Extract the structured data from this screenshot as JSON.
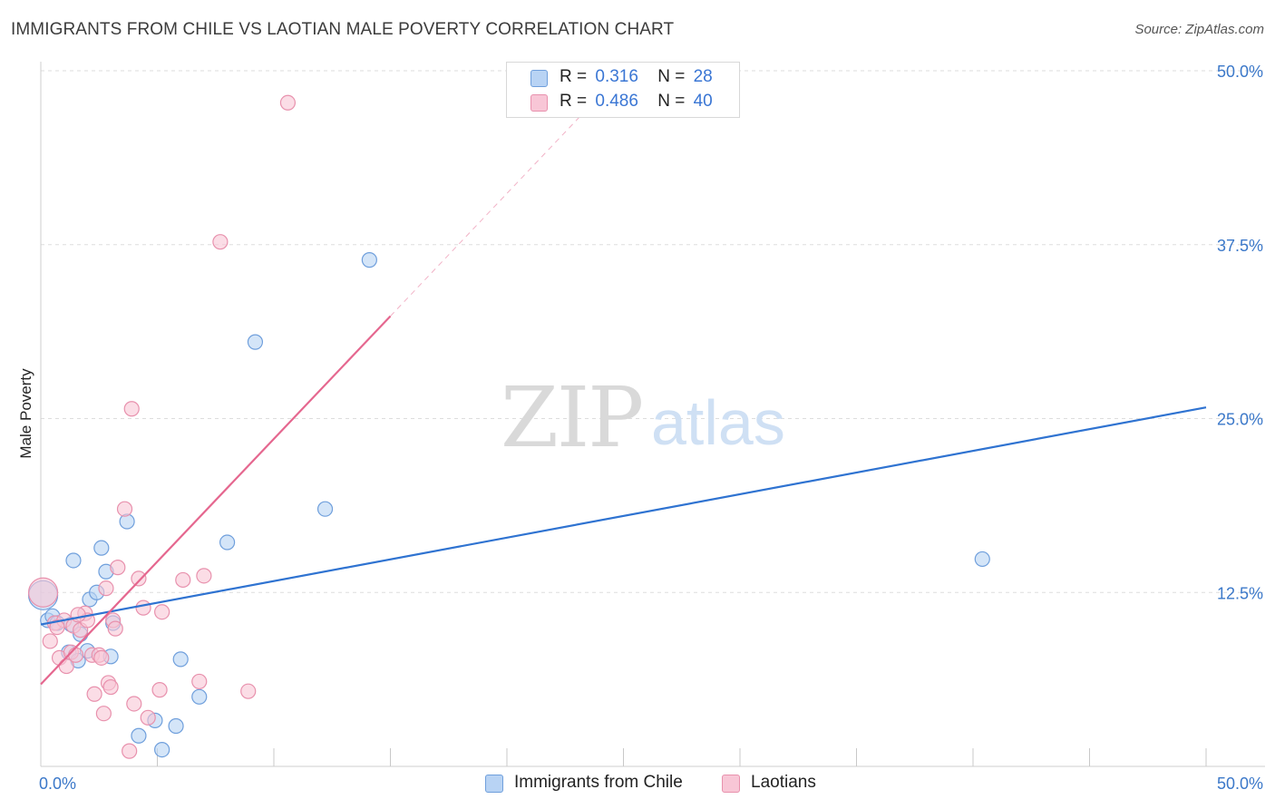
{
  "title": "IMMIGRANTS FROM CHILE VS LAOTIAN MALE POVERTY CORRELATION CHART",
  "source": "Source: ZipAtlas.com",
  "watermark": {
    "zip": "ZIP",
    "atlas": "atlas"
  },
  "legend": {
    "series1": {
      "r_label": "R =",
      "r_value": "0.316",
      "n_label": "N =",
      "n_value": "28"
    },
    "series2": {
      "r_label": "R =",
      "r_value": "0.486",
      "n_label": "N =",
      "n_value": "40"
    }
  },
  "bottom_legend": {
    "series1": "Immigrants from Chile",
    "series2": "Laotians"
  },
  "colors": {
    "blue_fill": "#b8d3f4",
    "blue_stroke": "#6f9fdc",
    "blue_line": "#2f73d1",
    "pink_fill": "#f8c6d6",
    "pink_stroke": "#e891ad",
    "pink_line": "#e5678f",
    "grid": "#dddddd",
    "tick_text": "#3b78c9"
  },
  "chart_data": {
    "type": "scatter",
    "title": "IMMIGRANTS FROM CHILE VS LAOTIAN MALE POVERTY CORRELATION CHART",
    "xlabel": "",
    "ylabel": "Male Poverty",
    "xlim": [
      0,
      50
    ],
    "ylim": [
      0,
      50
    ],
    "x_tick_labels": [
      "0.0%",
      "50.0%"
    ],
    "y_ticks": [
      12.5,
      25.0,
      37.5,
      50.0
    ],
    "y_tick_labels": [
      "12.5%",
      "25.0%",
      "37.5%",
      "50.0%"
    ],
    "grid": true,
    "series": [
      {
        "name": "Immigrants from Chile",
        "color": "#6f9fdc",
        "R": 0.316,
        "N": 28,
        "trend": {
          "x0": 0,
          "y0": 10.2,
          "x1": 50,
          "y1": 25.8,
          "dashed_from": null
        },
        "points": [
          [
            0.1,
            12.3
          ],
          [
            0.3,
            10.5
          ],
          [
            0.5,
            10.8
          ],
          [
            0.7,
            10.3
          ],
          [
            1.2,
            8.2
          ],
          [
            1.3,
            10.2
          ],
          [
            1.4,
            14.8
          ],
          [
            1.6,
            7.6
          ],
          [
            1.7,
            9.5
          ],
          [
            2.0,
            8.3
          ],
          [
            2.1,
            12.0
          ],
          [
            2.4,
            12.5
          ],
          [
            2.6,
            15.7
          ],
          [
            2.8,
            14.0
          ],
          [
            3.0,
            7.9
          ],
          [
            3.1,
            10.3
          ],
          [
            3.7,
            17.6
          ],
          [
            4.2,
            2.2
          ],
          [
            4.9,
            3.3
          ],
          [
            5.2,
            1.2
          ],
          [
            5.8,
            2.9
          ],
          [
            6.0,
            7.7
          ],
          [
            6.8,
            5.0
          ],
          [
            8.0,
            16.1
          ],
          [
            9.2,
            30.5
          ],
          [
            12.2,
            18.5
          ],
          [
            14.1,
            36.4
          ],
          [
            40.4,
            14.9
          ]
        ]
      },
      {
        "name": "Laotians",
        "color": "#e891ad",
        "R": 0.486,
        "N": 40,
        "trend": {
          "x0": 0,
          "y0": 5.9,
          "x1": 25.0,
          "y1": 50.0,
          "solid_until_x": 15.0
        },
        "points": [
          [
            0.1,
            12.5
          ],
          [
            0.4,
            9.0
          ],
          [
            0.6,
            10.3
          ],
          [
            0.8,
            7.8
          ],
          [
            1.0,
            10.5
          ],
          [
            1.1,
            7.2
          ],
          [
            1.3,
            8.2
          ],
          [
            1.4,
            10.1
          ],
          [
            1.5,
            8.0
          ],
          [
            1.7,
            9.8
          ],
          [
            1.9,
            11.0
          ],
          [
            2.0,
            10.5
          ],
          [
            2.2,
            8.0
          ],
          [
            2.3,
            5.2
          ],
          [
            2.5,
            8.0
          ],
          [
            2.6,
            7.8
          ],
          [
            2.7,
            3.8
          ],
          [
            2.8,
            12.8
          ],
          [
            2.9,
            6.0
          ],
          [
            3.0,
            5.7
          ],
          [
            3.1,
            10.5
          ],
          [
            3.2,
            9.9
          ],
          [
            3.3,
            14.3
          ],
          [
            3.6,
            18.5
          ],
          [
            3.8,
            1.1
          ],
          [
            3.9,
            25.7
          ],
          [
            4.0,
            4.5
          ],
          [
            4.2,
            13.5
          ],
          [
            4.4,
            11.4
          ],
          [
            4.6,
            3.5
          ],
          [
            5.1,
            5.5
          ],
          [
            5.2,
            11.1
          ],
          [
            6.1,
            13.4
          ],
          [
            6.8,
            6.1
          ],
          [
            7.0,
            13.7
          ],
          [
            7.7,
            37.7
          ],
          [
            8.9,
            5.4
          ],
          [
            10.6,
            47.7
          ],
          [
            0.7,
            10.0
          ],
          [
            1.6,
            10.9
          ]
        ]
      }
    ]
  }
}
